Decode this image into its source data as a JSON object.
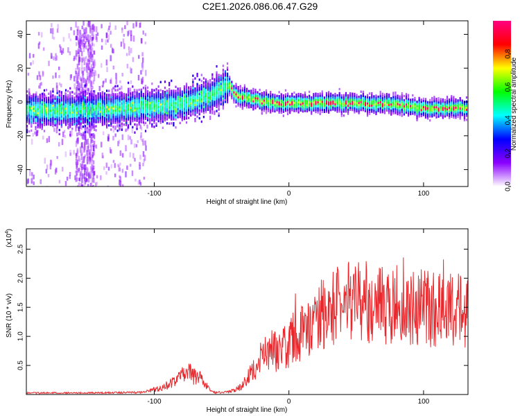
{
  "title": "C2E1.2026.086.06.47.G29",
  "chart_data": [
    {
      "type": "heatmap",
      "xlabel": "Height of straight line (km)",
      "ylabel": "Frequency (Hz)",
      "xlim": [
        -195,
        133
      ],
      "ylim": [
        -50,
        48
      ],
      "xticks": [
        -100,
        0,
        100
      ],
      "xtick_labels": [
        "-100",
        "0",
        "100"
      ],
      "yticks": [
        40,
        20,
        0,
        -20,
        -40
      ],
      "ytick_labels": [
        "40",
        "20",
        "0",
        "-20",
        "-40"
      ],
      "ridge": {
        "x": [
          -195,
          -160,
          -130,
          -100,
          -80,
          -60,
          -50,
          -45,
          -40,
          -30,
          -20,
          -10,
          0,
          20,
          40,
          60,
          80,
          100,
          120,
          133
        ],
        "y": [
          -4,
          -4,
          -3,
          -2,
          0,
          4,
          9,
          11,
          5,
          3,
          1,
          0,
          0,
          0,
          0,
          0,
          -1,
          -3,
          -3,
          -3
        ]
      },
      "colorbar": {
        "label": "Normalized spectral amplitude",
        "ticks": [
          0.0,
          0.2,
          0.4,
          0.6,
          0.8
        ],
        "tick_labels": [
          "0.0",
          "0.2",
          "0.4",
          "0.6",
          "0.8"
        ],
        "range": [
          0,
          1
        ],
        "colors": [
          "#ffffff",
          "#8b00ff",
          "#0000ff",
          "#00ffff",
          "#00ff00",
          "#ffff00",
          "#ff0000",
          "#ff0080"
        ]
      }
    },
    {
      "type": "line",
      "xlabel": "Height of straight line (km)",
      "ylabel": "SNR (10 * v/v)",
      "scale_label": "(x10",
      "scale_exp": "4",
      "scale_close": ")",
      "xlim": [
        -195,
        133
      ],
      "ylim": [
        0,
        2.85
      ],
      "xticks": [
        -100,
        0,
        100
      ],
      "xtick_labels": [
        "-100",
        "0",
        "100"
      ],
      "yticks": [
        0.5,
        1.0,
        1.5,
        2.0,
        2.5
      ],
      "ytick_labels": [
        "0.5",
        "1.0",
        "1.5",
        "2.0",
        "2.5"
      ],
      "series": [
        {
          "name": "SNR",
          "color": "#e8282c",
          "envelope_x": [
            -195,
            -150,
            -110,
            -95,
            -85,
            -75,
            -65,
            -58,
            -50,
            -40,
            -32,
            -25,
            -20,
            -10,
            0,
            10,
            20,
            25,
            35,
            45,
            55,
            65,
            75,
            85,
            95,
            110,
            120,
            133
          ],
          "envelope_y": [
            0.03,
            0.03,
            0.04,
            0.12,
            0.25,
            0.42,
            0.3,
            0.05,
            0.04,
            0.08,
            0.25,
            0.55,
            0.75,
            0.85,
            0.95,
            1.05,
            1.2,
            1.4,
            1.55,
            1.6,
            1.6,
            1.55,
            1.5,
            1.5,
            1.5,
            1.45,
            1.45,
            1.45
          ]
        }
      ]
    }
  ]
}
